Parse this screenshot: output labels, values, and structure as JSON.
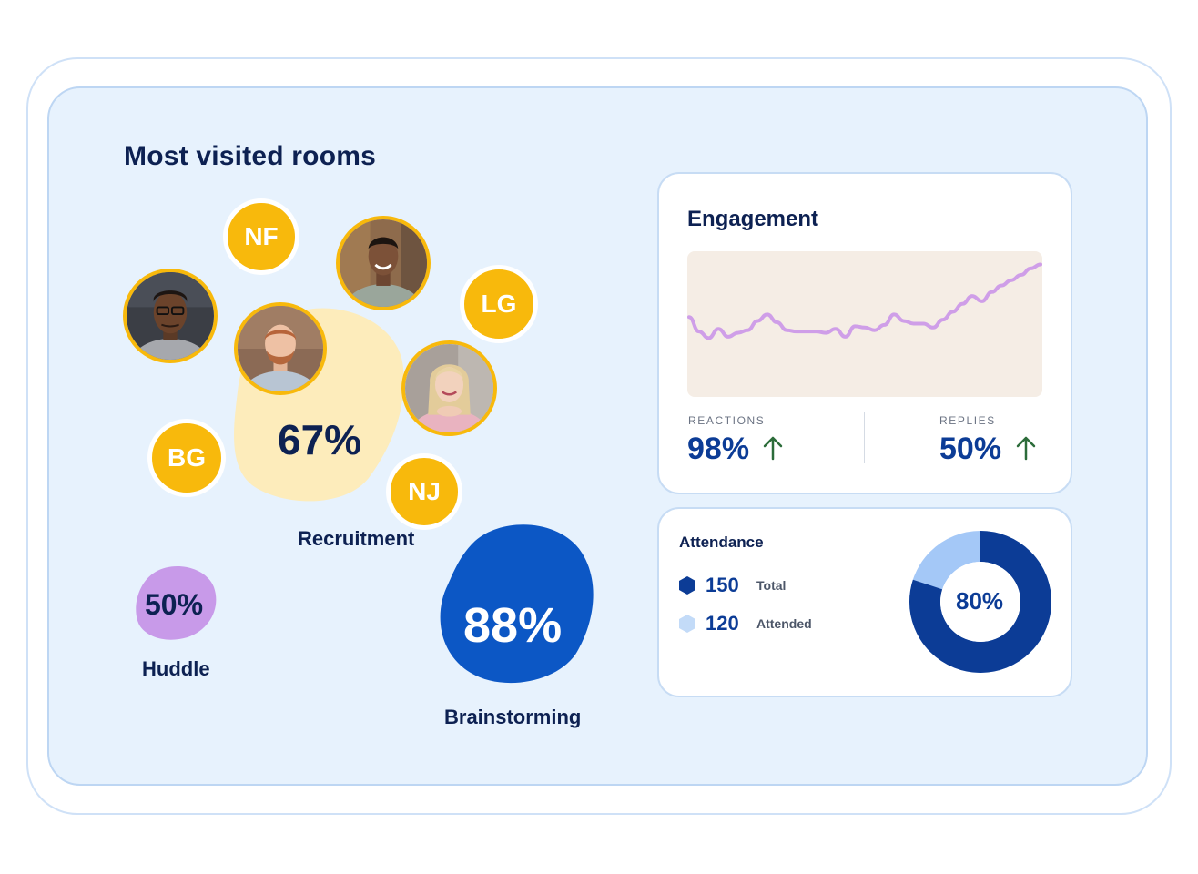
{
  "rooms": {
    "title": "Most visited rooms",
    "items": [
      {
        "name": "Recruitment",
        "percent": "67%",
        "color": "#fdecbb"
      },
      {
        "name": "Huddle",
        "percent": "50%",
        "color": "#c89ae9"
      },
      {
        "name": "Brainstorming",
        "percent": "88%",
        "color": "#0c57c5"
      }
    ],
    "participants": [
      "NF",
      "LG",
      "BG",
      "NJ"
    ]
  },
  "engagement": {
    "title": "Engagement",
    "reactions_label": "REACTIONS",
    "reactions_value": "98%",
    "replies_label": "REPLIES",
    "replies_value": "50%",
    "line_color": "#cf9ee8",
    "chart_bg": "#f5ede5"
  },
  "attendance": {
    "title": "Attendance",
    "total_value": "150",
    "total_label": "Total",
    "attended_value": "120",
    "attended_label": "Attended",
    "percent": "80%",
    "ratio": 0.8,
    "colors": {
      "total": "#0c3c96",
      "attended": "#a4c8f7"
    }
  },
  "chart_data": {
    "type": "line",
    "title": "Engagement",
    "xlabel": "",
    "ylabel": "",
    "grid": false,
    "values": [
      58,
      47,
      42,
      49,
      43,
      46,
      48,
      55,
      60,
      54,
      48,
      47,
      47,
      47,
      46,
      49,
      43,
      51,
      50,
      48,
      52,
      60,
      55,
      53,
      53,
      50,
      56,
      62,
      68,
      74,
      70,
      77,
      82,
      86,
      90,
      95,
      98
    ]
  }
}
